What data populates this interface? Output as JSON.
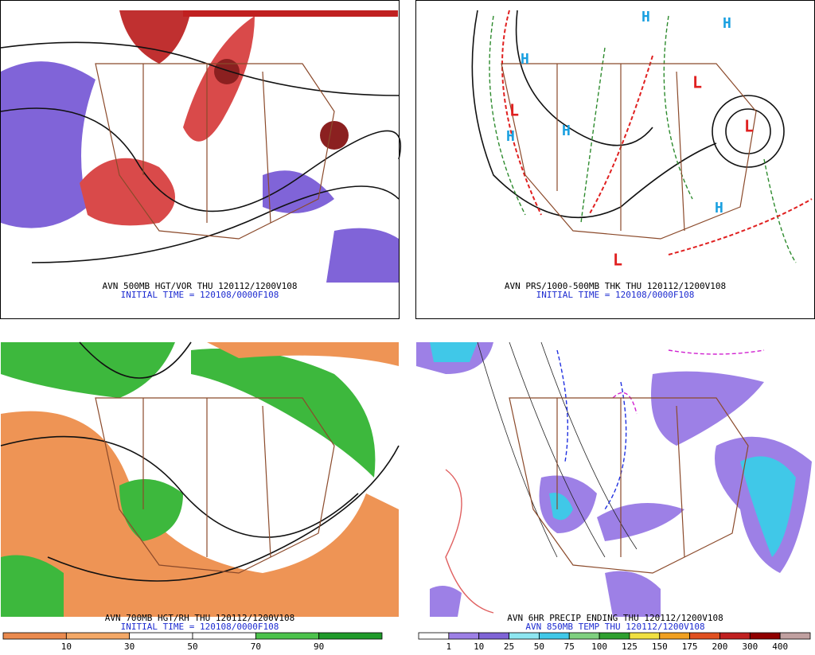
{
  "panels": [
    {
      "caption": "AVN 500MB HGT/VOR THU 120112/1200V108",
      "initial": "INITIAL TIME = 120108/0000F108"
    },
    {
      "caption": "AVN PRS/1000-500MB THK THU 120112/1200V108",
      "initial": "INITIAL TIME = 120108/0000F108"
    },
    {
      "caption": "AVN 700MB HGT/RH THU 120112/1200V108",
      "initial": "INITIAL TIME = 120108/0000F108",
      "colorbar": {
        "labels": [
          10,
          30,
          50,
          70,
          90
        ],
        "colors": [
          "#ea8a4e",
          "#f3a867",
          "#ffffff",
          "#ffffff",
          "#4cc24c",
          "#1f9a2a"
        ]
      }
    },
    {
      "caption": "AVN 6HR PRECIP ENDING THU 120112/1200V108",
      "initial": "AVN 850MB TEMP THU 120112/1200V108",
      "colorbar": {
        "labels": [
          1,
          10,
          25,
          50,
          75,
          100,
          125,
          150,
          175,
          200,
          300,
          400
        ],
        "colors": [
          "#ffffff",
          "#9d80e6",
          "#7f64d6",
          "#8ee6f0",
          "#40c8e8",
          "#7fd07f",
          "#2fa02f",
          "#f0e040",
          "#f0a020",
          "#e05020",
          "#c02020",
          "#900000",
          "#c0a0a0"
        ]
      }
    }
  ]
}
